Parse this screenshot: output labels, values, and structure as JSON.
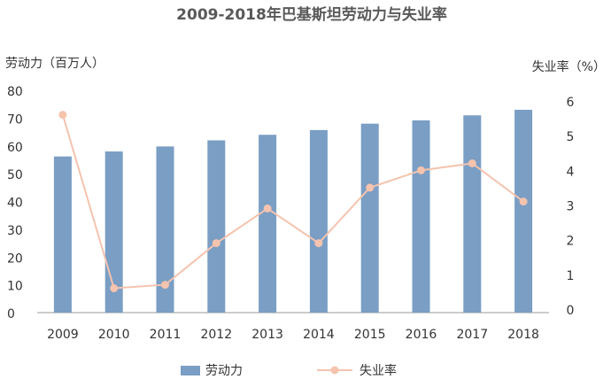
{
  "chart_data": {
    "type": "bar",
    "title": "2009-2018年巴基斯坦劳动力与失业率",
    "left_axis_label": "劳动力（百万人）",
    "right_axis_label": "失业率（%）",
    "categories": [
      "2009",
      "2010",
      "2011",
      "2012",
      "2013",
      "2014",
      "2015",
      "2016",
      "2017",
      "2018"
    ],
    "left_ticks": [
      "0",
      "10",
      "20",
      "30",
      "40",
      "50",
      "60",
      "70",
      "80"
    ],
    "right_ticks": [
      "0",
      "1",
      "2",
      "3",
      "4",
      "5",
      "6"
    ],
    "left_ylim": [
      0,
      80
    ],
    "right_ylim": [
      0,
      6
    ],
    "series": [
      {
        "name": "劳动力",
        "type": "bar",
        "axis": "left",
        "color": "#7a9ec4",
        "values": [
          56.2,
          58.0,
          59.8,
          62.0,
          64.0,
          65.7,
          68.0,
          69.2,
          71.0,
          73.0
        ]
      },
      {
        "name": "失业率",
        "type": "line",
        "axis": "right",
        "color": "#f5c3ae",
        "values": [
          5.6,
          0.6,
          0.7,
          1.9,
          2.9,
          1.9,
          3.5,
          4.0,
          4.2,
          3.1
        ]
      }
    ],
    "legend_position": "bottom",
    "grid": false
  }
}
